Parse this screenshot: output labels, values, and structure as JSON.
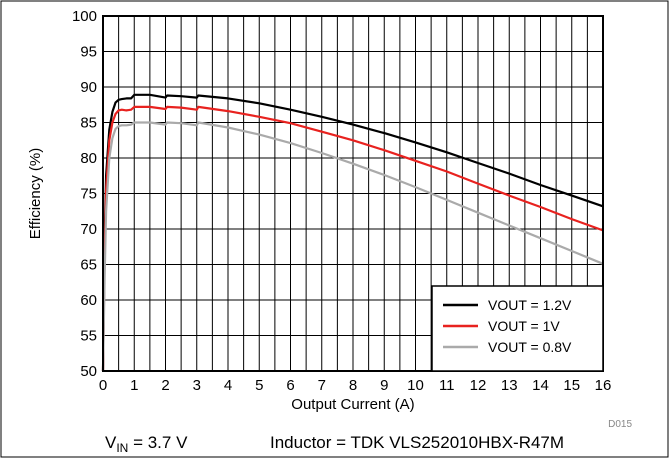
{
  "chart_data": {
    "type": "line",
    "xlabel": "Output Current (A)",
    "ylabel": "Efficiency (%)",
    "xlim": [
      0,
      16
    ],
    "ylim": [
      50,
      100
    ],
    "x_ticks": [
      0,
      1,
      2,
      3,
      4,
      5,
      6,
      7,
      8,
      9,
      10,
      11,
      12,
      13,
      14,
      15,
      16
    ],
    "y_ticks": [
      50,
      55,
      60,
      65,
      70,
      75,
      80,
      85,
      90,
      95,
      100
    ],
    "minor_x_step": 0.5,
    "grid": true,
    "legend_position": "bottom-right",
    "series": [
      {
        "name": "VOUT = 1.2V",
        "color": "#000000",
        "x": [
          0,
          0.05,
          0.1,
          0.2,
          0.3,
          0.4,
          0.5,
          0.6,
          0.75,
          0.9,
          1.0,
          1.5,
          2.0,
          2.05,
          2.5,
          3.0,
          3.05,
          4,
          5,
          6,
          7,
          8,
          9,
          10,
          11,
          12,
          13,
          14,
          15,
          16
        ],
        "y": [
          50,
          68,
          77.5,
          84,
          86.5,
          87.8,
          88.2,
          88.3,
          88.4,
          88.4,
          88.9,
          88.9,
          88.5,
          88.8,
          88.7,
          88.5,
          88.8,
          88.4,
          87.7,
          86.8,
          85.8,
          84.7,
          83.5,
          82.2,
          80.8,
          79.3,
          77.8,
          76.2,
          74.7,
          73.2
        ]
      },
      {
        "name": "VOUT = 1V",
        "color": "#e8221f",
        "x": [
          0,
          0.05,
          0.1,
          0.2,
          0.3,
          0.4,
          0.5,
          0.6,
          0.75,
          0.9,
          1.0,
          1.5,
          2.0,
          2.05,
          2.5,
          3.0,
          3.05,
          4,
          5,
          6,
          7,
          8,
          9,
          10,
          11,
          12,
          13,
          14,
          15,
          16
        ],
        "y": [
          50,
          66,
          75.5,
          82.5,
          85,
          86.2,
          86.7,
          86.8,
          86.7,
          86.8,
          87.2,
          87.2,
          86.9,
          87.2,
          87.1,
          86.8,
          87.2,
          86.6,
          85.8,
          84.9,
          83.7,
          82.5,
          81.1,
          79.6,
          78.1,
          76.4,
          74.7,
          73.1,
          71.4,
          69.8
        ]
      },
      {
        "name": "VOUT = 0.8V",
        "color": "#aaaaaa",
        "x": [
          0,
          0.05,
          0.1,
          0.2,
          0.3,
          0.4,
          0.5,
          0.6,
          0.75,
          0.9,
          1.0,
          1.5,
          2.0,
          2.05,
          2.5,
          3.0,
          3.05,
          4,
          5,
          6,
          7,
          8,
          9,
          10,
          11,
          12,
          13,
          14,
          15,
          16
        ],
        "y": [
          50,
          63,
          72.5,
          80,
          82.8,
          84.1,
          84.5,
          84.6,
          84.6,
          84.7,
          85.0,
          85.0,
          84.7,
          85.0,
          84.9,
          84.6,
          85.0,
          84.3,
          83.3,
          82.1,
          80.7,
          79.2,
          77.6,
          75.9,
          74.1,
          72.3,
          70.5,
          68.7,
          66.9,
          65.1
        ]
      }
    ]
  },
  "footer": {
    "vin_label": "V",
    "vin_sub": "IN",
    "vin_value": " = 3.7 V",
    "inductor": "Inductor = TDK VLS252010HBX-R47M",
    "figure_id": "D015"
  }
}
